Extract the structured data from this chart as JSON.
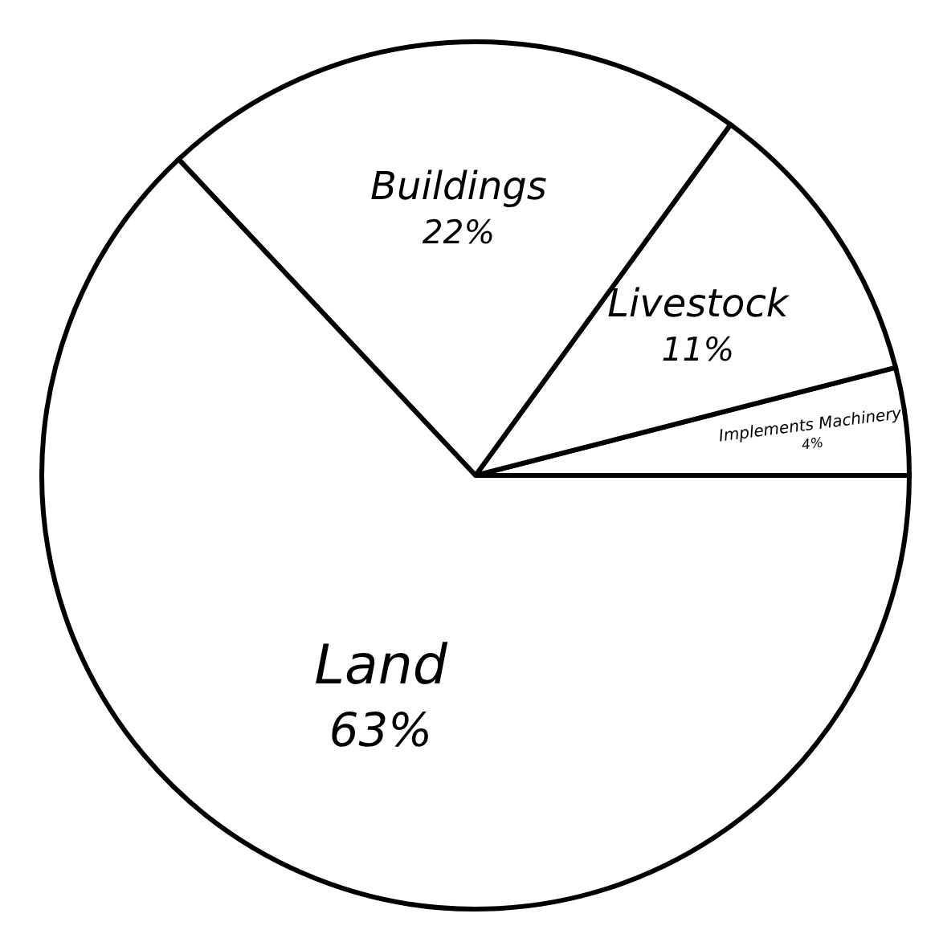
{
  "chart_data": {
    "type": "pie",
    "categories": [
      "Implements Machinery",
      "Livestock",
      "Buildings",
      "Land"
    ],
    "values": [
      4,
      11,
      22,
      63
    ],
    "value_labels": [
      "4%",
      "11%",
      "22%",
      "63%"
    ],
    "colors": [
      "#ffffff",
      "#ffffff",
      "#ffffff",
      "#ffffff"
    ]
  }
}
